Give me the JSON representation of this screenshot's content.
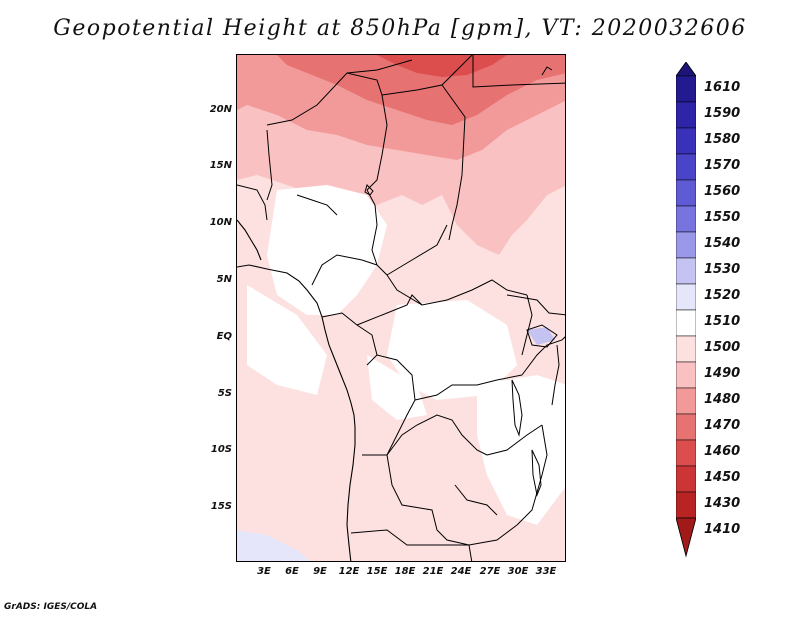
{
  "title": "Geopotential Height at 850hPa [gpm], VT: 2020032606",
  "credit": "GrADS: IGES/COLA",
  "axes": {
    "lat_labels": [
      "20N",
      "15N",
      "10N",
      "5N",
      "EQ",
      "5S",
      "10S",
      "15S"
    ],
    "lon_labels": [
      "3E",
      "6E",
      "9E",
      "12E",
      "15E",
      "18E",
      "21E",
      "24E",
      "27E",
      "30E",
      "33E"
    ]
  },
  "colorbar": {
    "levels": [
      "1610",
      "1590",
      "1580",
      "1570",
      "1560",
      "1550",
      "1540",
      "1530",
      "1520",
      "1510",
      "1500",
      "1490",
      "1480",
      "1470",
      "1460",
      "1450",
      "1430",
      "1410"
    ],
    "colors": {
      "c1620": "#1c1478",
      "c1600": "#231a8f",
      "c1585": "#2d24a8",
      "c1575": "#3a31ba",
      "c1565": "#4a45c8",
      "c1555": "#5e5bd4",
      "c1545": "#7774df",
      "c1535": "#9a98e8",
      "c1525": "#c4c3f2",
      "c1515": "#e6e6fa",
      "c1505": "#ffffff",
      "c1495": "#fde0e0",
      "c1485": "#f9c1c1",
      "c1475": "#f29a9a",
      "c1465": "#e77272",
      "c1455": "#dc4e4e",
      "c1440": "#cc3535",
      "c1420": "#b82424",
      "c1400": "#a01a1a"
    }
  }
}
